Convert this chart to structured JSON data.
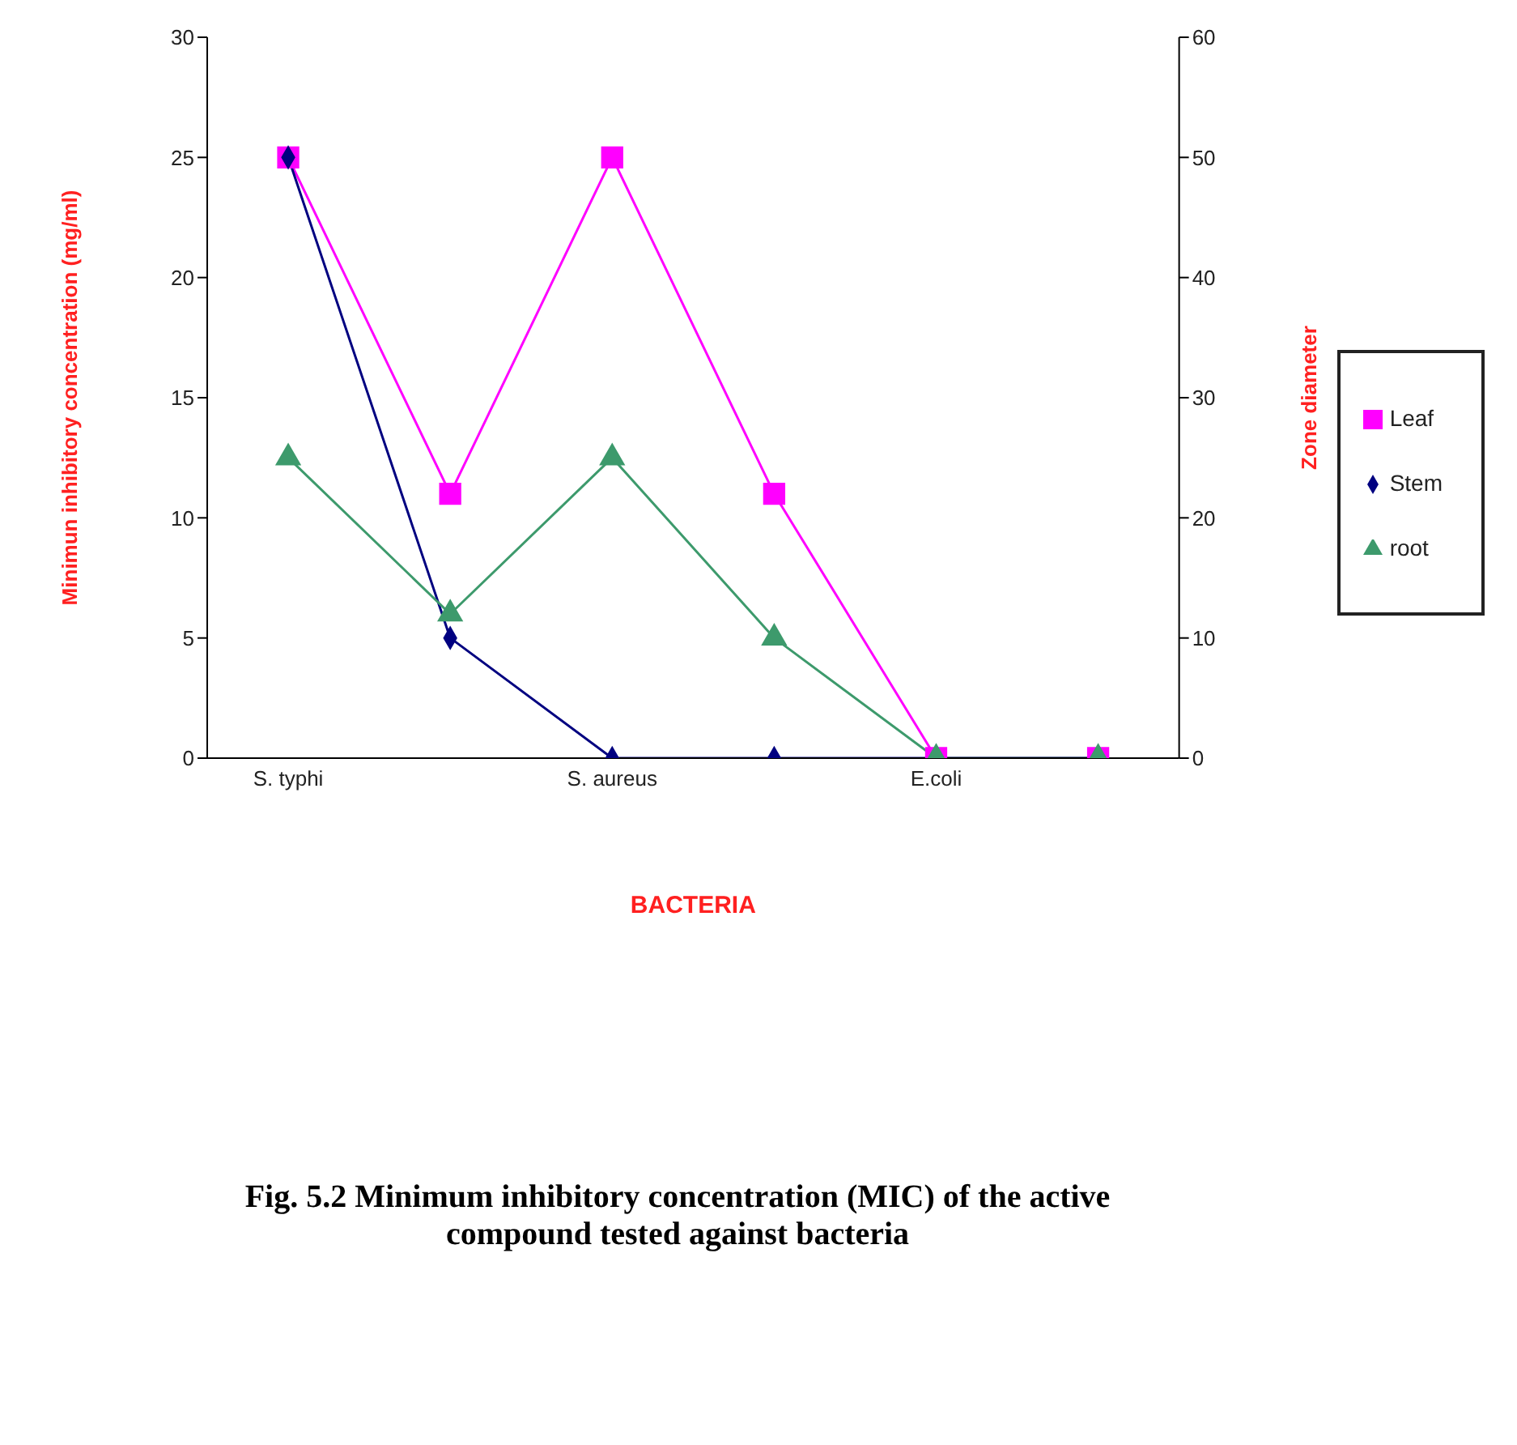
{
  "chart_data": {
    "type": "line",
    "title": "Fig. 5.2 Minimum inhibitory concentration (MIC) of the active compound tested against bacteria",
    "xlabel": "BACTERIA",
    "ylabel": "Minimun inhibitory concentration (mg/ml)",
    "y2label": "Zone diameter",
    "categories": [
      "S. typhi",
      null,
      "S. aureus",
      null,
      "E.coli",
      null
    ],
    "series": [
      {
        "name": "Leaf",
        "color": "#ff00ff",
        "marker": "square",
        "values": [
          25,
          11,
          25,
          11,
          0,
          0
        ]
      },
      {
        "name": "Stem",
        "color": "#000080",
        "marker": "diamond",
        "values": [
          25,
          5,
          0,
          0,
          0,
          0
        ]
      },
      {
        "name": "root",
        "color": "#3d9a6c",
        "marker": "triangle",
        "values": [
          12.5,
          6,
          12.5,
          5,
          0,
          0
        ]
      }
    ],
    "ylim": [
      0,
      30
    ],
    "yticks": [
      0,
      5,
      10,
      15,
      20,
      25,
      30
    ],
    "y2lim": [
      0,
      60
    ],
    "y2ticks": [
      0,
      10,
      20,
      30,
      40,
      50,
      60
    ],
    "legend": "right"
  }
}
